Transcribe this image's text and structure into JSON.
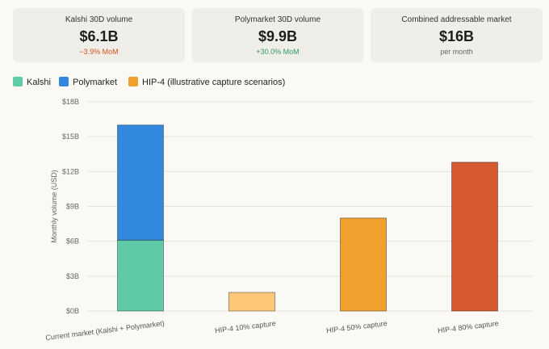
{
  "cards": [
    {
      "label": "Kalshi 30D volume",
      "value": "$6.1B",
      "sub": "−3.9% MoM",
      "sub_color": "#d0501d"
    },
    {
      "label": "Polymarket 30D volume",
      "value": "$9.9B",
      "sub": "+30.0% MoM",
      "sub_color": "#2e9a61"
    },
    {
      "label": "Combined addressable market",
      "value": "$16B",
      "sub": "per month",
      "sub_color": "#666666"
    }
  ],
  "legend": [
    {
      "label": "Kalshi",
      "color": "#5ecba6"
    },
    {
      "label": "Polymarket",
      "color": "#3388e0"
    },
    {
      "label": "HIP-4 (illustrative capture scenarios)",
      "color": "#f0a02c"
    }
  ],
  "chart_data": {
    "type": "bar",
    "stacked": true,
    "categories": [
      "Current market (Kalshi + Polymarket)",
      "HIP-4 10% capture",
      "HIP-4 50% capture",
      "HIP-4 80% capture"
    ],
    "series": [
      {
        "name": "Kalshi",
        "values": [
          6.1,
          0,
          0,
          0
        ],
        "color": "#5ecba6"
      },
      {
        "name": "Polymarket",
        "values": [
          9.9,
          0,
          0,
          0
        ],
        "color": "#3388e0"
      },
      {
        "name": "HIP-4 (illustrative capture scenarios)",
        "values": [
          0,
          1.6,
          8.0,
          12.8
        ],
        "colors": [
          "#fdc77a",
          "#fdc77a",
          "#f0a02c",
          "#d85a30"
        ]
      }
    ],
    "ylabel": "Monthly volume (USD)",
    "ylim": [
      0,
      18
    ],
    "yticks": [
      0,
      3,
      6,
      9,
      12,
      15,
      18
    ],
    "ytick_labels": [
      "$0B",
      "$3B",
      "$6B",
      "$9B",
      "$12B",
      "$15B",
      "$18B"
    ],
    "grid": true,
    "legend_position": "top-left"
  }
}
